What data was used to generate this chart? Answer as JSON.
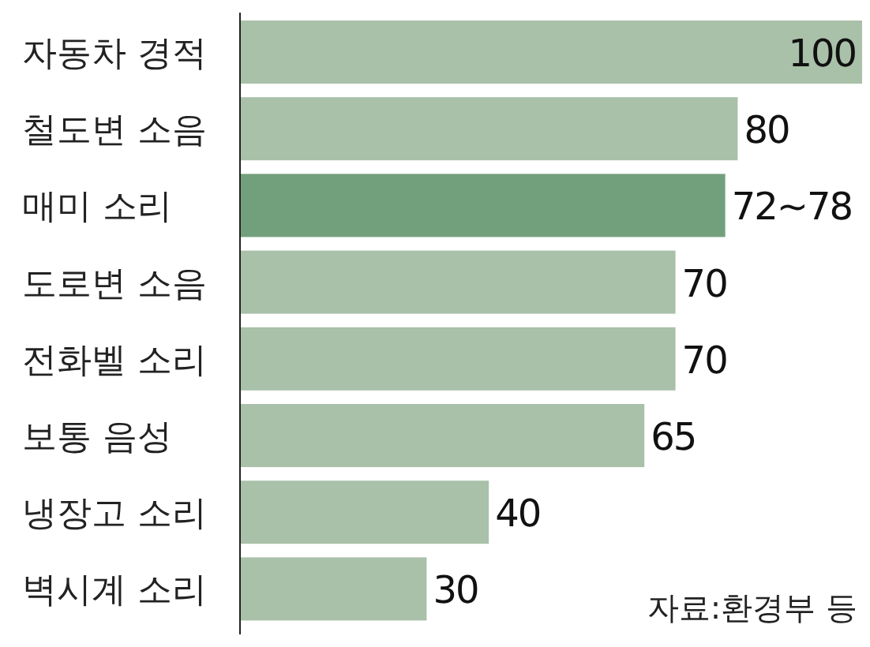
{
  "chart_data": {
    "type": "bar",
    "orientation": "horizontal",
    "categories": [
      "자동차 경적",
      "철도변 소음",
      "매미 소리",
      "도로변 소음",
      "전화벨 소리",
      "보통 음성",
      "냉장고 소리",
      "벽시계 소리"
    ],
    "values": [
      100,
      80,
      78,
      70,
      70,
      65,
      40,
      30
    ],
    "value_labels": [
      "100",
      "80",
      "72~78",
      "70",
      "70",
      "65",
      "40",
      "30"
    ],
    "colors": [
      "#a9c0a9",
      "#a9c0a9",
      "#73a07c",
      "#a9c0a9",
      "#a9c0a9",
      "#a9c0a9",
      "#a9c0a9",
      "#a9c0a9"
    ],
    "annotations": [
      "자료:환경부 등"
    ]
  }
}
